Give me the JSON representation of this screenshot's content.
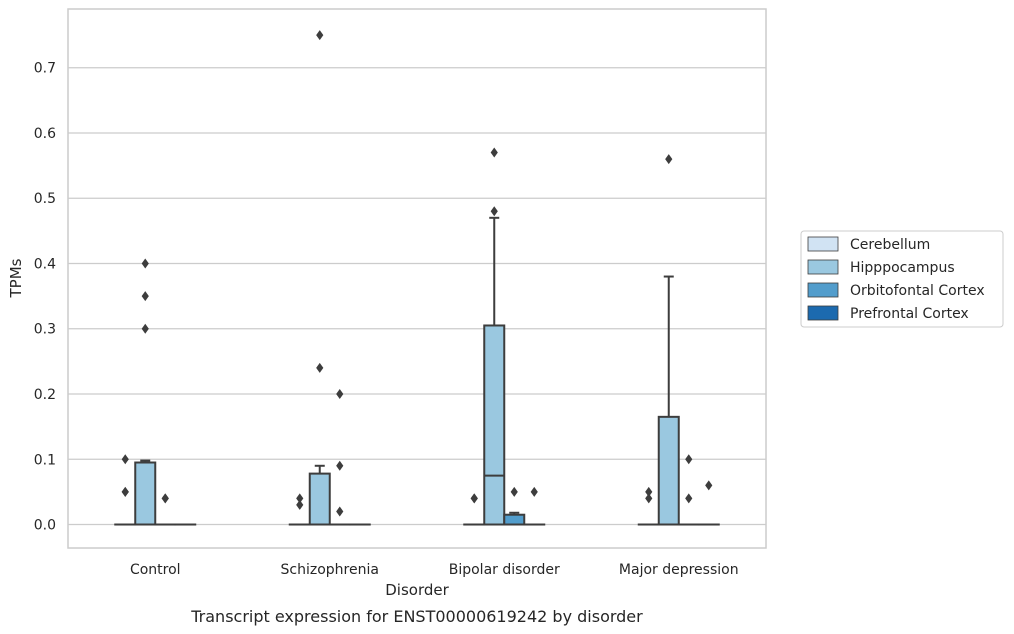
{
  "chart_data": {
    "type": "box",
    "caption": "Transcript expression for ENST00000619242 by disorder",
    "xlabel": "Disorder",
    "ylabel": "TPMs",
    "ylim": [
      -0.036,
      0.79
    ],
    "yticks": [
      0.0,
      0.1,
      0.2,
      0.3,
      0.4,
      0.5,
      0.6,
      0.7
    ],
    "ytick_labels": [
      "0.0",
      "0.1",
      "0.2",
      "0.3",
      "0.4",
      "0.5",
      "0.6",
      "0.7"
    ],
    "grid": "horizontal",
    "legend_position": "right, outside plot",
    "categories": [
      "Control",
      "Schizophrenia",
      "Bipolar disorder",
      "Major depression"
    ],
    "series": [
      {
        "name": "Cerebellum",
        "color": "#d1e3f3",
        "boxes": [
          {
            "q1": 0.0,
            "median": 0.0,
            "q3": 0.0,
            "whislo": 0.0,
            "whishi": 0.0,
            "fliers": [
              0.05,
              0.05,
              0.1
            ]
          },
          {
            "q1": 0.0,
            "median": 0.0,
            "q3": 0.0,
            "whislo": 0.0,
            "whishi": 0.0,
            "fliers": [
              0.03,
              0.04
            ]
          },
          {
            "q1": 0.0,
            "median": 0.0,
            "q3": 0.0,
            "whislo": 0.0,
            "whishi": 0.0,
            "fliers": [
              0.04,
              0.04
            ]
          },
          {
            "q1": 0.0,
            "median": 0.0,
            "q3": 0.0,
            "whislo": 0.0,
            "whishi": 0.0,
            "fliers": [
              0.04,
              0.05
            ]
          }
        ]
      },
      {
        "name": "Hipppocampus",
        "color": "#9ac8e0",
        "boxes": [
          {
            "q1": 0.0,
            "median": 0.0,
            "q3": 0.095,
            "whislo": 0.0,
            "whishi": 0.098,
            "fliers": [
              0.3,
              0.35,
              0.4
            ]
          },
          {
            "q1": 0.0,
            "median": 0.0,
            "q3": 0.078,
            "whislo": 0.0,
            "whishi": 0.09,
            "fliers": [
              0.24,
              0.75
            ]
          },
          {
            "q1": 0.0,
            "median": 0.075,
            "q3": 0.305,
            "whislo": 0.0,
            "whishi": 0.47,
            "fliers": [
              0.48,
              0.57
            ]
          },
          {
            "q1": 0.0,
            "median": 0.0,
            "q3": 0.165,
            "whislo": 0.0,
            "whishi": 0.38,
            "fliers": [
              0.56
            ]
          }
        ]
      },
      {
        "name": "Orbitofontal Cortex",
        "color": "#529dcc",
        "boxes": [
          {
            "q1": 0.0,
            "median": 0.0,
            "q3": 0.0,
            "whislo": 0.0,
            "whishi": 0.0,
            "fliers": [
              0.04,
              0.04
            ]
          },
          {
            "q1": 0.0,
            "median": 0.0,
            "q3": 0.0,
            "whislo": 0.0,
            "whishi": 0.0,
            "fliers": [
              0.02,
              0.09,
              0.2
            ]
          },
          {
            "q1": 0.0,
            "median": 0.0,
            "q3": 0.015,
            "whislo": 0.0,
            "whishi": 0.018,
            "fliers": [
              0.05
            ]
          },
          {
            "q1": 0.0,
            "median": 0.0,
            "q3": 0.0,
            "whislo": 0.0,
            "whishi": 0.0,
            "fliers": [
              0.04,
              0.1
            ]
          }
        ]
      },
      {
        "name": "Prefrontal Cortex",
        "color": "#1c6aaf",
        "boxes": [
          {
            "q1": 0.0,
            "median": 0.0,
            "q3": 0.0,
            "whislo": 0.0,
            "whishi": 0.0,
            "fliers": []
          },
          {
            "q1": 0.0,
            "median": 0.0,
            "q3": 0.0,
            "whislo": 0.0,
            "whishi": 0.0,
            "fliers": []
          },
          {
            "q1": 0.0,
            "median": 0.0,
            "q3": 0.0,
            "whislo": 0.0,
            "whishi": 0.0,
            "fliers": [
              0.05
            ]
          },
          {
            "q1": 0.0,
            "median": 0.0,
            "q3": 0.0,
            "whislo": 0.0,
            "whishi": 0.0,
            "fliers": [
              0.06
            ]
          }
        ]
      }
    ]
  }
}
